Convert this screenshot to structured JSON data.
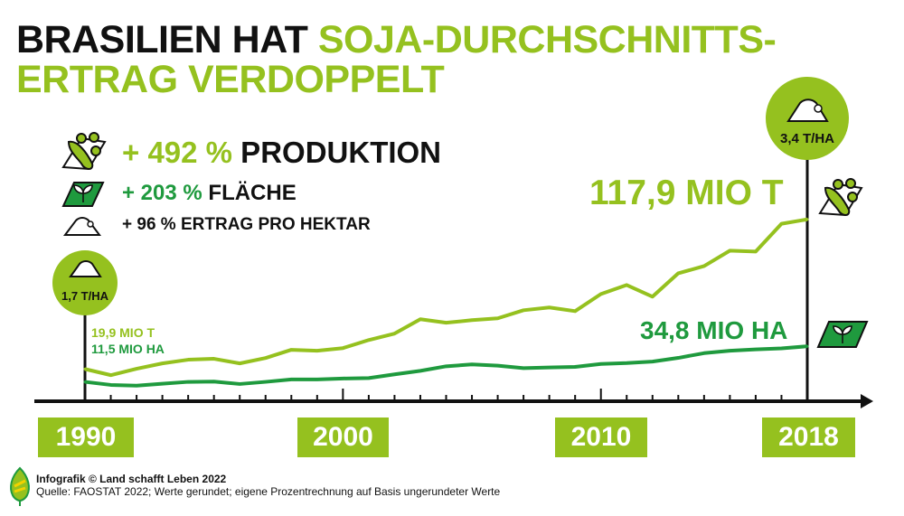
{
  "title": {
    "part1": "BRASILIEN HAT ",
    "part2": "SOJA-DURCHSCHNITTS-",
    "line2": "ERTRAG VERDOPPELT"
  },
  "legend": [
    {
      "value": "+ 492 %",
      "label": " PRODUKTION",
      "icon": "soybean-icon"
    },
    {
      "value": "+ 203 %",
      "label": " FLÄCHE",
      "icon": "field-sprout-icon"
    },
    {
      "value": "+ 96 %",
      "label": " ERTRAG PRO HEKTAR",
      "icon": "pile-icon"
    }
  ],
  "start": {
    "yield": "1,7 T/HA",
    "production": "19,9 MIO T",
    "area": "11,5 MIO HA"
  },
  "end": {
    "yield": "3,4 T/HA",
    "production": "117,9 MIO T",
    "area": "34,8 MIO HA"
  },
  "years": [
    "1990",
    "2000",
    "2010",
    "2018"
  ],
  "footer": {
    "credit": "Infografik © Land schafft Leben 2022",
    "source": "Quelle: FAOSTAT 2022; Werte gerundet; eigene Prozentrechnung  auf Basis ungerundeter Werte"
  },
  "colors": {
    "light_green": "#95c11f",
    "dark_green": "#1f9a3e",
    "black": "#111111"
  },
  "chart_data": {
    "type": "line",
    "title": "Brasilien hat Soja-Durchschnittsertrag verdoppelt",
    "x": [
      1990,
      1991,
      1992,
      1993,
      1994,
      1995,
      1996,
      1997,
      1998,
      1999,
      2000,
      2001,
      2002,
      2003,
      2004,
      2005,
      2006,
      2007,
      2008,
      2009,
      2010,
      2011,
      2012,
      2013,
      2014,
      2015,
      2016,
      2017,
      2018
    ],
    "xticks": [
      1990,
      2000,
      2010,
      2018
    ],
    "series": [
      {
        "name": "Produktion (Mio t)",
        "color": "#95c11f",
        "values": [
          19.9,
          15.9,
          20.1,
          23.6,
          26.0,
          26.6,
          23.6,
          27.1,
          32.5,
          31.9,
          33.6,
          38.9,
          43.1,
          52.5,
          50.2,
          51.9,
          53.1,
          58.4,
          60.2,
          57.8,
          69.0,
          74.9,
          67.3,
          82.6,
          87.3,
          97.4,
          96.8,
          115.0,
          117.9
        ]
      },
      {
        "name": "Fläche (Mio ha)",
        "color": "#1f9a3e",
        "values": [
          11.5,
          9.5,
          9.0,
          10.3,
          11.5,
          11.7,
          10.1,
          11.5,
          13.1,
          13.1,
          13.7,
          14.0,
          16.4,
          18.7,
          21.7,
          22.9,
          22.1,
          20.5,
          20.9,
          21.3,
          23.2,
          23.8,
          24.8,
          27.2,
          30.3,
          31.9,
          32.8,
          33.4,
          34.8
        ]
      }
    ],
    "xlim": [
      1990,
      2018
    ],
    "ylim": [
      0,
      120
    ],
    "grid": false,
    "legend": "top-left"
  }
}
